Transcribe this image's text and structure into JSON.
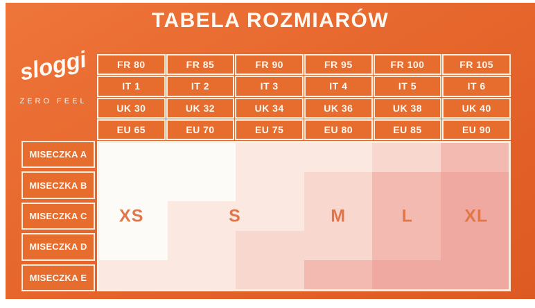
{
  "title": "TABELA ROZMIARÓW",
  "brand": {
    "name": "sloggi",
    "tagline": "ZERO FEEL"
  },
  "colors": {
    "background": "#e6662c",
    "background_light": "#ee753a",
    "background_dark": "#de5a23",
    "cell_orange": "#e76d2f",
    "border_cream": "#f7efe2",
    "text_light": "#fdf8f1",
    "zone_label": "#e0764a"
  },
  "chart_data": {
    "type": "table",
    "title": "TABELA ROZMIARÓW",
    "legend_position": "none",
    "column_header_rows": [
      [
        "FR 80",
        "FR 85",
        "FR 90",
        "FR 95",
        "FR 100",
        "FR 105"
      ],
      [
        "IT 1",
        "IT 2",
        "IT 3",
        "IT 4",
        "IT 5",
        "IT 6"
      ],
      [
        "UK 30",
        "UK 32",
        "UK 34",
        "UK 36",
        "UK 38",
        "UK 40"
      ],
      [
        "EU 65",
        "EU 70",
        "EU 75",
        "EU 80",
        "EU 85",
        "EU 90"
      ]
    ],
    "row_headers": [
      "MISECZKA A",
      "MISECZKA B",
      "MISECZKA C",
      "MISECZKA D",
      "MISECZKA E"
    ],
    "sizes": [
      {
        "code": "XS",
        "shade": "#fdfbf8",
        "label_left_pct": 8.33
      },
      {
        "code": "S",
        "shade": "#fbe9e1",
        "label_left_pct": 33.33
      },
      {
        "code": "M",
        "shade": "#f8d7ce",
        "label_left_pct": 58.33
      },
      {
        "code": "L",
        "shade": "#f3bab1",
        "label_left_pct": 75
      },
      {
        "code": "XL",
        "shade": "#f0a9a1",
        "label_left_pct": 91.67
      }
    ],
    "matrix": [
      [
        "XS",
        "XS",
        "S",
        "S",
        "M",
        "L"
      ],
      [
        "XS",
        "XS",
        "S",
        "M",
        "L",
        "XL"
      ],
      [
        "XS",
        "S",
        "S",
        "M",
        "L",
        "XL"
      ],
      [
        "XS",
        "S",
        "M",
        "M",
        "L",
        "XL"
      ],
      [
        "S",
        "S",
        "M",
        "L",
        "XL",
        "XL"
      ]
    ]
  }
}
